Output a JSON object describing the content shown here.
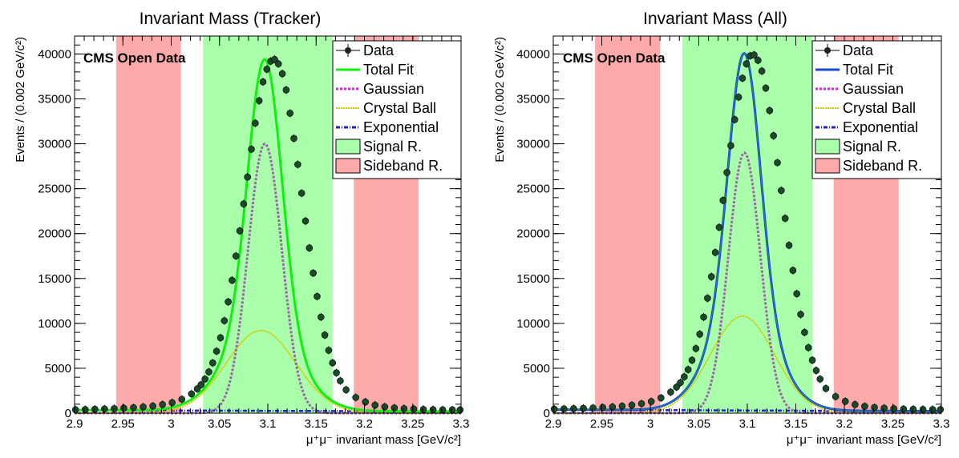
{
  "chart_data": [
    {
      "id": "tracker",
      "type": "line",
      "title": "Invariant Mass (Tracker)",
      "xlabel": "μ⁺μ⁻ invariant mass [GeV/c²]",
      "ylabel": "Events / (0.002 GeV/c²)",
      "annotation": "CMS Open Data",
      "xlim": [
        2.9,
        3.3
      ],
      "ylim": [
        0,
        42000
      ],
      "xticks": [
        "2.9",
        "2.95",
        "3",
        "3.05",
        "3.1",
        "3.15",
        "3.2",
        "3.25",
        "3.3"
      ],
      "xtick_values": [
        2.9,
        2.95,
        3.0,
        3.05,
        3.1,
        3.15,
        3.2,
        3.25,
        3.3
      ],
      "yticks": [
        "0",
        "5000",
        "10000",
        "15000",
        "20000",
        "25000",
        "30000",
        "35000",
        "40000"
      ],
      "ytick_values": [
        0,
        5000,
        10000,
        15000,
        20000,
        25000,
        30000,
        35000,
        40000
      ],
      "grid": false,
      "legend_position": "top-right",
      "legend": [
        "Data",
        "Total Fit",
        "Gaussian",
        "Crystal Ball",
        "Exponential",
        "Signal R.",
        "Sideband R."
      ],
      "regions": [
        {
          "name": "Sideband R.",
          "from": 2.943,
          "to": 3.01,
          "color": "#ffaaaa"
        },
        {
          "name": "Signal R.",
          "from": 3.033,
          "to": 3.167,
          "color": "#aaffaa"
        },
        {
          "name": "Sideband R.",
          "from": 3.189,
          "to": 3.256,
          "color": "#ffaaaa"
        }
      ],
      "colors": {
        "total": "#11ee11",
        "gauss": "#9966aa",
        "gauss_legend": "#dd22dd",
        "cb": "#cccc00",
        "exp": "#2222cc",
        "data": "#1a4a2a",
        "signal": "#aaffaa",
        "sideband": "#ffaaaa"
      },
      "components": {
        "mean": 3.097,
        "gaussian": {
          "amplitude": 30000,
          "sigma": 0.0175
        },
        "crystal_ball": {
          "amplitude": 9200,
          "mean": 3.093,
          "sigma": 0.036
        },
        "exponential": {
          "start": 350,
          "slope": -1.5
        }
      },
      "data_points": {
        "x": [
          2.901,
          2.911,
          2.921,
          2.931,
          2.941,
          2.951,
          2.961,
          2.971,
          2.981,
          2.991,
          3.001,
          3.011,
          3.021,
          3.027,
          3.031,
          3.035,
          3.039,
          3.043,
          3.047,
          3.051,
          3.055,
          3.059,
          3.063,
          3.067,
          3.071,
          3.075,
          3.079,
          3.083,
          3.087,
          3.091,
          3.095,
          3.099,
          3.103,
          3.107,
          3.111,
          3.115,
          3.119,
          3.123,
          3.127,
          3.131,
          3.135,
          3.139,
          3.143,
          3.147,
          3.151,
          3.155,
          3.159,
          3.163,
          3.167,
          3.171,
          3.175,
          3.181,
          3.191,
          3.201,
          3.211,
          3.221,
          3.231,
          3.241,
          3.251,
          3.261,
          3.271,
          3.281,
          3.291,
          3.299
        ],
        "y": [
          380,
          410,
          440,
          470,
          510,
          560,
          620,
          700,
          800,
          960,
          1180,
          1550,
          2150,
          2700,
          3170,
          3800,
          4600,
          5600,
          6900,
          8400,
          10300,
          12400,
          14800,
          17500,
          20300,
          23300,
          26300,
          29400,
          32300,
          34800,
          36900,
          38300,
          39200,
          39400,
          38900,
          37800,
          36000,
          33400,
          30600,
          27700,
          24500,
          21400,
          18400,
          15600,
          13000,
          10700,
          8700,
          7000,
          5600,
          4500,
          3600,
          2600,
          1750,
          1250,
          900,
          710,
          590,
          510,
          460,
          420,
          400,
          380,
          370,
          360
        ]
      }
    },
    {
      "id": "all",
      "type": "line",
      "title": "Invariant Mass (All)",
      "xlabel": "μ⁺μ⁻ invariant mass [GeV/c²]",
      "ylabel": "Events / (0.002 GeV/c²)",
      "annotation": "CMS Open Data",
      "xlim": [
        2.9,
        3.3
      ],
      "ylim": [
        0,
        42000
      ],
      "xticks": [
        "2.9",
        "2.95",
        "3",
        "3.05",
        "3.1",
        "3.15",
        "3.2",
        "3.25",
        "3.3"
      ],
      "xtick_values": [
        2.9,
        2.95,
        3.0,
        3.05,
        3.1,
        3.15,
        3.2,
        3.25,
        3.3
      ],
      "yticks": [
        "0",
        "5000",
        "10000",
        "15000",
        "20000",
        "25000",
        "30000",
        "35000",
        "40000"
      ],
      "ytick_values": [
        0,
        5000,
        10000,
        15000,
        20000,
        25000,
        30000,
        35000,
        40000
      ],
      "grid": false,
      "legend_position": "top-right",
      "legend": [
        "Data",
        "Total Fit",
        "Gaussian",
        "Crystal Ball",
        "Exponential",
        "Signal R.",
        "Sideband R."
      ],
      "regions": [
        {
          "name": "Sideband R.",
          "from": 2.943,
          "to": 3.01,
          "color": "#ffaaaa"
        },
        {
          "name": "Signal R.",
          "from": 3.033,
          "to": 3.167,
          "color": "#aaffaa"
        },
        {
          "name": "Sideband R.",
          "from": 3.189,
          "to": 3.256,
          "color": "#ffaaaa"
        }
      ],
      "colors": {
        "total": "#1a4ad0",
        "total_inner": "#2a8a8a",
        "gauss": "#9966aa",
        "gauss_legend": "#dd22dd",
        "cb": "#cccc00",
        "exp": "#2222cc",
        "data": "#1a4a2a",
        "signal": "#aaffaa",
        "sideband": "#ffaaaa"
      },
      "components": {
        "mean": 3.097,
        "gaussian": {
          "amplitude": 29000,
          "sigma": 0.0165
        },
        "crystal_ball": {
          "amplitude": 10800,
          "mean": 3.095,
          "sigma": 0.033
        },
        "exponential": {
          "start": 400,
          "slope": -1.5
        }
      },
      "data_points": {
        "x": [
          2.901,
          2.911,
          2.921,
          2.931,
          2.941,
          2.951,
          2.961,
          2.971,
          2.981,
          2.991,
          3.001,
          3.011,
          3.021,
          3.027,
          3.031,
          3.035,
          3.039,
          3.043,
          3.047,
          3.051,
          3.055,
          3.059,
          3.063,
          3.067,
          3.071,
          3.075,
          3.079,
          3.083,
          3.087,
          3.091,
          3.095,
          3.099,
          3.103,
          3.107,
          3.111,
          3.115,
          3.119,
          3.123,
          3.127,
          3.131,
          3.135,
          3.139,
          3.143,
          3.147,
          3.151,
          3.155,
          3.159,
          3.163,
          3.167,
          3.171,
          3.175,
          3.181,
          3.191,
          3.201,
          3.211,
          3.221,
          3.231,
          3.241,
          3.251,
          3.261,
          3.271,
          3.281,
          3.291,
          3.299
        ],
        "y": [
          450,
          480,
          510,
          540,
          590,
          640,
          700,
          790,
          900,
          1060,
          1300,
          1700,
          2350,
          2900,
          3400,
          4050,
          4850,
          5900,
          7200,
          8800,
          10700,
          12800,
          15200,
          17900,
          20700,
          23700,
          26800,
          29800,
          32700,
          35200,
          37300,
          38900,
          39800,
          39900,
          39300,
          38100,
          36200,
          33700,
          30900,
          27900,
          24800,
          21700,
          18700,
          15900,
          13300,
          11000,
          9000,
          7300,
          5900,
          4750,
          3800,
          2750,
          1850,
          1320,
          960,
          760,
          640,
          560,
          500,
          460,
          440,
          420,
          410,
          400
        ]
      }
    }
  ]
}
